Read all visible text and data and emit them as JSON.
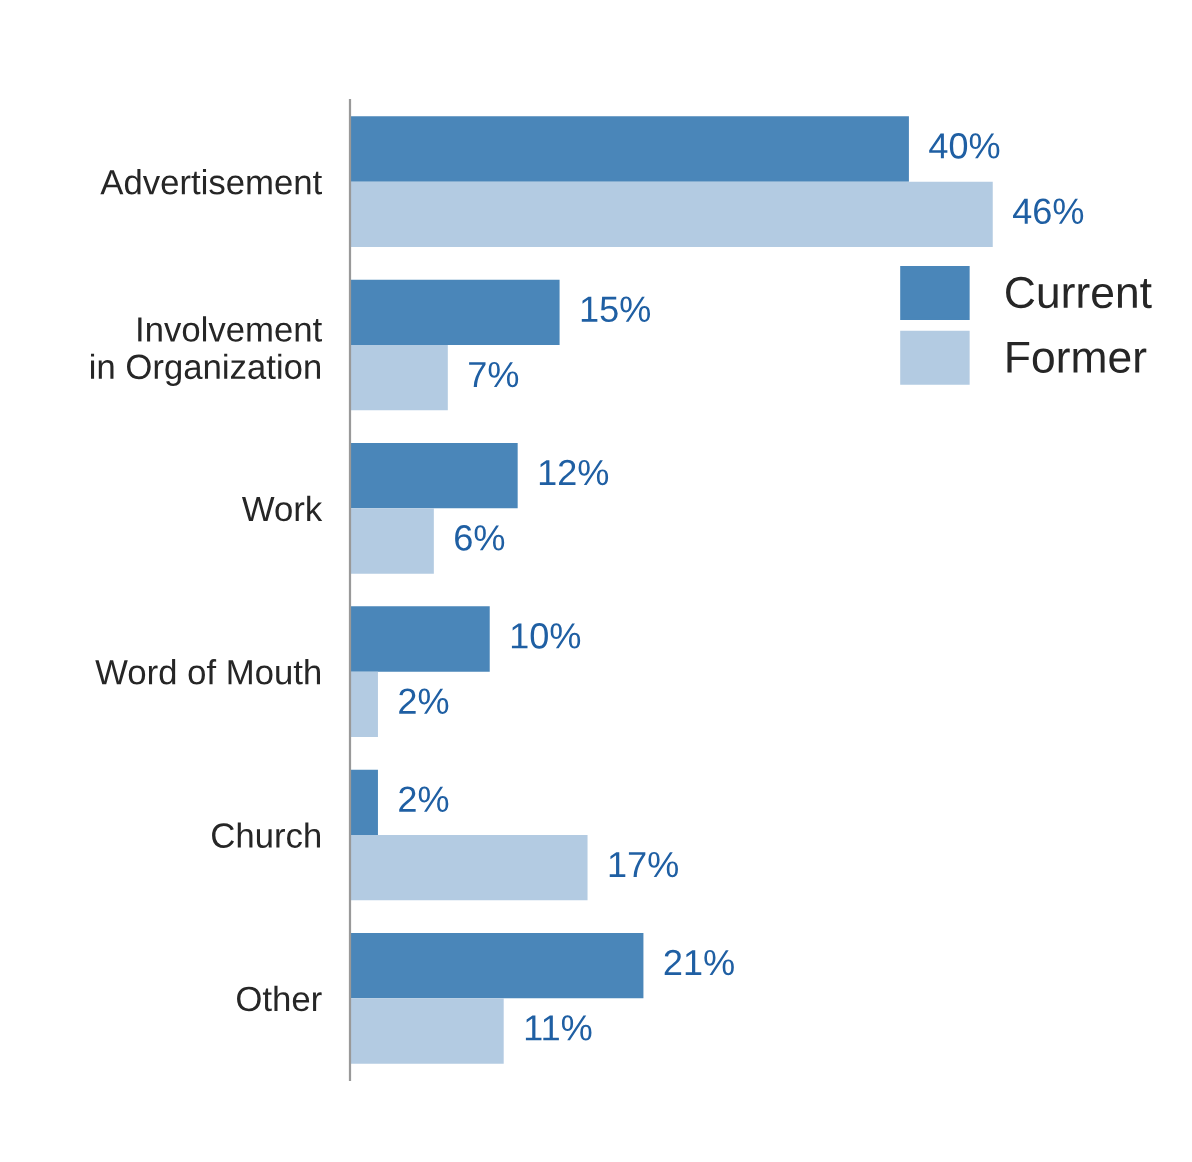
{
  "chart_data": {
    "type": "bar",
    "orientation": "horizontal",
    "categories": [
      "Advertisement",
      "Involvement\nin Organization",
      "Work",
      "Word of Mouth",
      "Church",
      "Other"
    ],
    "series": [
      {
        "name": "Current",
        "color": "#4a86b9",
        "values": [
          40,
          15,
          12,
          10,
          2,
          21
        ],
        "value_labels": [
          "40%",
          "15%",
          "12%",
          "10%",
          "2%",
          "21%"
        ]
      },
      {
        "name": "Former",
        "color": "#b3cbe2",
        "values": [
          46,
          7,
          6,
          2,
          17,
          11
        ],
        "value_labels": [
          "46%",
          "7%",
          "6%",
          "2%",
          "17%",
          "11%"
        ]
      }
    ],
    "legend": "right",
    "grid": false
  }
}
